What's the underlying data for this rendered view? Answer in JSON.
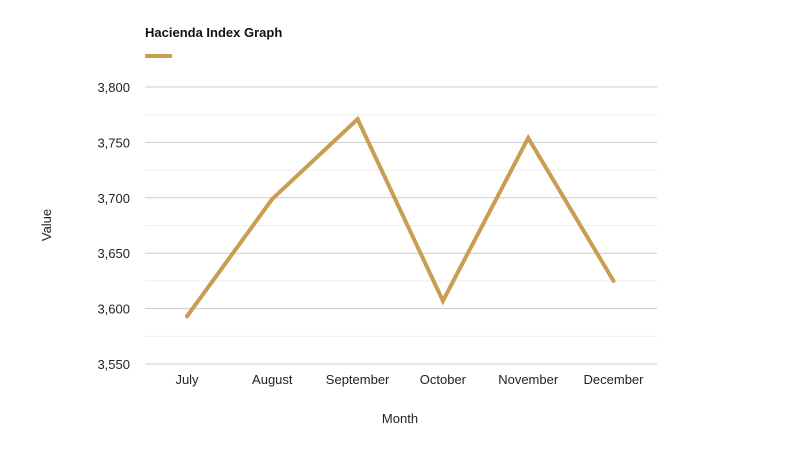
{
  "chart_data": {
    "type": "line",
    "title": "Hacienda Index Graph",
    "xlabel": "Month",
    "ylabel": "Value",
    "categories": [
      "July",
      "August",
      "September",
      "October",
      "November",
      "December"
    ],
    "series": [
      {
        "values": [
          3593,
          3699,
          3771,
          3607,
          3754,
          3625
        ],
        "color": "#c99d52"
      }
    ],
    "ylim": [
      3550,
      3800
    ],
    "yticks": [
      3550,
      3600,
      3650,
      3700,
      3750,
      3800
    ],
    "ytick_labels": [
      "3,550",
      "3,600",
      "3,650",
      "3,700",
      "3,750",
      "3,800"
    ],
    "grid": true,
    "legend": "top-left",
    "colors": {
      "line": "#c99d52",
      "grid": "#cccccc",
      "minor_grid": "#eeeeee",
      "text": "#222222"
    }
  }
}
